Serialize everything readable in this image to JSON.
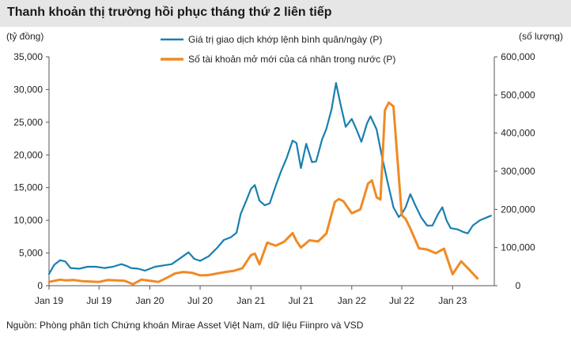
{
  "title": "Thanh khoản thị trường hồi phục tháng thứ 2 liên tiếp",
  "source": "Nguồn: Phòng phân tích Chứng khoán Mirae Asset Việt Nam, dữ liệu Fiinpro và VSD",
  "colors": {
    "series1": "#1a7fb0",
    "series2": "#f08a24",
    "title_bg": "#e6e6e6"
  },
  "chart_data": {
    "type": "line",
    "ylabel_left": "(tỷ đồng)",
    "ylabel_right": "(số lượng)",
    "ylim_left": [
      0,
      35000
    ],
    "ylim_right": [
      0,
      600000
    ],
    "left_ticks": [
      "0",
      "5,000",
      "10,000",
      "15,000",
      "20,000",
      "25,000",
      "30,000",
      "35,000"
    ],
    "right_ticks": [
      "0",
      "100,000",
      "200,000",
      "300,000",
      "400,000",
      "500,000",
      "600,000"
    ],
    "x_range": [
      "2019-01",
      "2023-06"
    ],
    "x_ticks": [
      "Jan 19",
      "Jul 19",
      "Jan 20",
      "Jul 20",
      "Jan 21",
      "Jul 21",
      "Jan 22",
      "Jul 22",
      "Jan 23"
    ],
    "legend_position": "top",
    "grid": false,
    "series": [
      {
        "name": "Giá trị giao dịch khớp lệnh bình quân/ngày (P)",
        "axis": "left",
        "points": [
          [
            "2019-01-01",
            1800
          ],
          [
            "2019-01-20",
            3200
          ],
          [
            "2019-02-10",
            3900
          ],
          [
            "2019-03-01",
            3700
          ],
          [
            "2019-03-20",
            2700
          ],
          [
            "2019-04-20",
            2600
          ],
          [
            "2019-05-20",
            2900
          ],
          [
            "2019-06-20",
            2900
          ],
          [
            "2019-07-20",
            2700
          ],
          [
            "2019-08-20",
            2900
          ],
          [
            "2019-09-20",
            3300
          ],
          [
            "2019-10-10",
            3000
          ],
          [
            "2019-10-25",
            2700
          ],
          [
            "2019-11-20",
            2600
          ],
          [
            "2019-12-15",
            2300
          ],
          [
            "2020-01-01",
            2600
          ],
          [
            "2020-01-20",
            2900
          ],
          [
            "2020-02-20",
            3100
          ],
          [
            "2020-03-20",
            3300
          ],
          [
            "2020-04-20",
            4200
          ],
          [
            "2020-05-20",
            5100
          ],
          [
            "2020-06-10",
            4100
          ],
          [
            "2020-07-01",
            3800
          ],
          [
            "2020-08-01",
            4500
          ],
          [
            "2020-09-01",
            5800
          ],
          [
            "2020-09-25",
            7000
          ],
          [
            "2020-10-20",
            7400
          ],
          [
            "2020-11-10",
            8100
          ],
          [
            "2020-11-25",
            11000
          ],
          [
            "2020-12-15",
            13000
          ],
          [
            "2021-01-01",
            14800
          ],
          [
            "2021-01-15",
            15400
          ],
          [
            "2021-02-01",
            13000
          ],
          [
            "2021-02-20",
            12300
          ],
          [
            "2021-03-10",
            12600
          ],
          [
            "2021-04-01",
            15300
          ],
          [
            "2021-04-20",
            17500
          ],
          [
            "2021-05-10",
            19500
          ],
          [
            "2021-06-01",
            22200
          ],
          [
            "2021-06-15",
            21800
          ],
          [
            "2021-07-01",
            18000
          ],
          [
            "2021-07-20",
            21700
          ],
          [
            "2021-08-10",
            18900
          ],
          [
            "2021-08-25",
            19000
          ],
          [
            "2021-09-15",
            22300
          ],
          [
            "2021-10-01",
            24000
          ],
          [
            "2021-10-20",
            27000
          ],
          [
            "2021-11-05",
            31000
          ],
          [
            "2021-11-20",
            28000
          ],
          [
            "2021-12-10",
            24300
          ],
          [
            "2022-01-01",
            25500
          ],
          [
            "2022-01-20",
            23700
          ],
          [
            "2022-02-05",
            22000
          ],
          [
            "2022-02-25",
            24800
          ],
          [
            "2022-03-10",
            25900
          ],
          [
            "2022-04-01",
            23900
          ],
          [
            "2022-04-20",
            19800
          ],
          [
            "2022-05-10",
            16000
          ],
          [
            "2022-06-01",
            12000
          ],
          [
            "2022-06-20",
            10500
          ],
          [
            "2022-07-01",
            11000
          ],
          [
            "2022-07-15",
            12000
          ],
          [
            "2022-08-01",
            14000
          ],
          [
            "2022-08-20",
            12200
          ],
          [
            "2022-09-10",
            10400
          ],
          [
            "2022-10-01",
            9200
          ],
          [
            "2022-10-20",
            9200
          ],
          [
            "2022-11-10",
            11000
          ],
          [
            "2022-11-25",
            12000
          ],
          [
            "2022-12-10",
            10000
          ],
          [
            "2022-12-25",
            8800
          ],
          [
            "2023-01-20",
            8600
          ],
          [
            "2023-02-10",
            8200
          ],
          [
            "2023-02-25",
            8000
          ],
          [
            "2023-03-15",
            9200
          ],
          [
            "2023-04-10",
            10000
          ],
          [
            "2023-05-20",
            10700
          ]
        ]
      },
      {
        "name": "Số tài khoản mở mới của cá nhân trong nước (P)",
        "axis": "right",
        "points": [
          [
            "2019-01-01",
            10000
          ],
          [
            "2019-02-10",
            16000
          ],
          [
            "2019-03-01",
            14000
          ],
          [
            "2019-04-01",
            15000
          ],
          [
            "2019-05-01",
            12000
          ],
          [
            "2019-06-01",
            11000
          ],
          [
            "2019-07-01",
            10000
          ],
          [
            "2019-08-01",
            15000
          ],
          [
            "2019-09-01",
            14000
          ],
          [
            "2019-10-01",
            13000
          ],
          [
            "2019-11-01",
            4000
          ],
          [
            "2019-12-01",
            16000
          ],
          [
            "2020-01-01",
            13000
          ],
          [
            "2020-02-01",
            10000
          ],
          [
            "2020-03-01",
            20000
          ],
          [
            "2020-04-01",
            32000
          ],
          [
            "2020-05-01",
            36000
          ],
          [
            "2020-06-01",
            34000
          ],
          [
            "2020-07-01",
            27000
          ],
          [
            "2020-08-01",
            28000
          ],
          [
            "2020-09-01",
            32000
          ],
          [
            "2020-10-01",
            36000
          ],
          [
            "2020-11-01",
            39000
          ],
          [
            "2020-12-01",
            46000
          ],
          [
            "2021-01-01",
            80000
          ],
          [
            "2021-01-15",
            84000
          ],
          [
            "2021-02-01",
            56000
          ],
          [
            "2021-03-01",
            113000
          ],
          [
            "2021-04-01",
            105000
          ],
          [
            "2021-05-01",
            115000
          ],
          [
            "2021-06-01",
            138000
          ],
          [
            "2021-06-15",
            117000
          ],
          [
            "2021-07-01",
            100000
          ],
          [
            "2021-08-01",
            119000
          ],
          [
            "2021-09-01",
            116000
          ],
          [
            "2021-10-01",
            137000
          ],
          [
            "2021-11-01",
            220000
          ],
          [
            "2021-11-15",
            227000
          ],
          [
            "2021-12-01",
            222000
          ],
          [
            "2022-01-01",
            190000
          ],
          [
            "2022-02-01",
            200000
          ],
          [
            "2022-03-01",
            268000
          ],
          [
            "2022-03-15",
            276000
          ],
          [
            "2022-04-01",
            232000
          ],
          [
            "2022-04-15",
            226000
          ],
          [
            "2022-05-01",
            460000
          ],
          [
            "2022-05-15",
            480000
          ],
          [
            "2022-06-01",
            470000
          ],
          [
            "2022-07-01",
            185000
          ],
          [
            "2022-07-15",
            175000
          ],
          [
            "2022-08-01",
            150000
          ],
          [
            "2022-09-01",
            98000
          ],
          [
            "2022-10-01",
            95000
          ],
          [
            "2022-11-01",
            85000
          ],
          [
            "2022-12-01",
            97000
          ],
          [
            "2023-01-01",
            30000
          ],
          [
            "2023-02-01",
            64000
          ],
          [
            "2023-03-01",
            43000
          ],
          [
            "2023-04-01",
            19000
          ]
        ]
      }
    ]
  }
}
